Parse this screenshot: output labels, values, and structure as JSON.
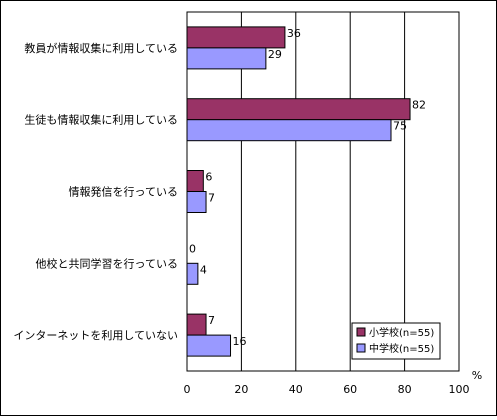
{
  "chart_data": {
    "type": "bar",
    "orientation": "horizontal",
    "categories": [
      "教員が情報収集に利用している",
      "生徒も情報収集に利用している",
      "情報発信を行っている",
      "他校と共同学習を行っている",
      "インターネットを利用していない"
    ],
    "series": [
      {
        "name": "小学校(n=55)",
        "values": [
          36,
          82,
          6,
          0,
          7
        ],
        "color": "#993366"
      },
      {
        "name": "中学校(n=55)",
        "values": [
          29,
          75,
          7,
          4,
          16
        ],
        "color": "#9999ff"
      }
    ],
    "xlim": [
      0,
      100
    ],
    "xticks": [
      0,
      20,
      40,
      60,
      80,
      100
    ],
    "unit_label": "%",
    "grid": true,
    "legend_position": "bottom-right"
  }
}
